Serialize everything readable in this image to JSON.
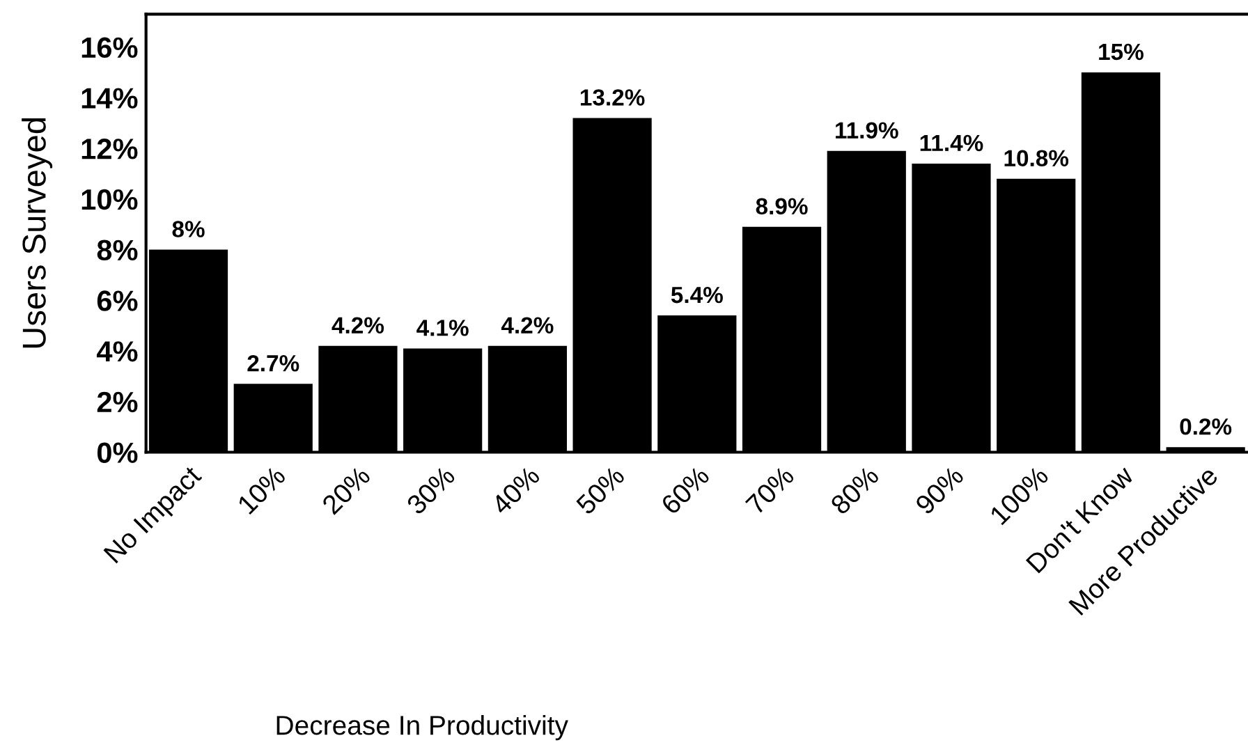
{
  "chart_data": {
    "type": "bar",
    "xlabel": "Decrease In Productivity",
    "ylabel": "Users Surveyed",
    "categories": [
      "No Impact",
      "10%",
      "20%",
      "30%",
      "40%",
      "50%",
      "60%",
      "70%",
      "80%",
      "90%",
      "100%",
      "Don't Know",
      "More Productive"
    ],
    "values": [
      8,
      2.7,
      4.2,
      4.1,
      4.2,
      13.2,
      5.4,
      8.9,
      11.9,
      11.4,
      10.8,
      15,
      0.2
    ],
    "value_labels": [
      "8%",
      "2.7%",
      "4.2%",
      "4.1%",
      "4.2%",
      "13.2%",
      "5.4%",
      "8.9%",
      "11.9%",
      "11.4%",
      "10.8%",
      "15%",
      "0.2%"
    ],
    "color": "#000000",
    "ylim": [
      0,
      17.3
    ],
    "yticks": [
      {
        "value": 0,
        "label": "0%"
      },
      {
        "value": 2,
        "label": "2%"
      },
      {
        "value": 4,
        "label": "4%"
      },
      {
        "value": 6,
        "label": "6%"
      },
      {
        "value": 8,
        "label": "8%"
      },
      {
        "value": 10,
        "label": "10%"
      },
      {
        "value": 12,
        "label": "12%"
      },
      {
        "value": 14,
        "label": "14%"
      },
      {
        "value": 16,
        "label": "16%"
      }
    ],
    "grid": false,
    "legend": false
  }
}
